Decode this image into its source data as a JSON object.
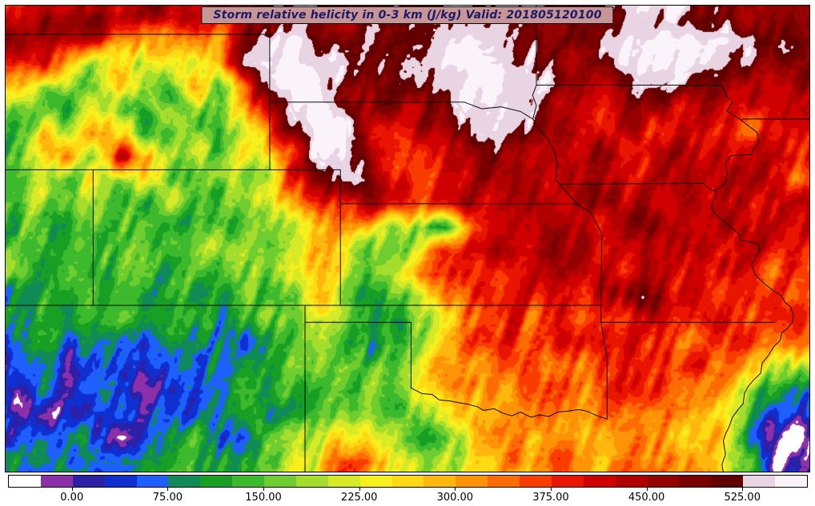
{
  "title": {
    "text": "Storm relative helicity in 0-3 km (J/kg) Valid: 201805120100",
    "bg_color": "#c79595",
    "text_color": "#1a1a66",
    "border_color": "#000000"
  },
  "chart_data": {
    "type": "heatmap",
    "title": "Storm relative helicity in 0-3 km (J/kg) Valid: 201805120100",
    "units": "J/kg",
    "valid_time": "201805120100",
    "colorbar": {
      "min": -50,
      "max": 575,
      "bin_size": 25,
      "tick_values": [
        0,
        75,
        150,
        225,
        300,
        375,
        450,
        525
      ],
      "tick_labels": [
        "0.00",
        "75.00",
        "150.00",
        "225.00",
        "300.00",
        "375.00",
        "450.00",
        "525.00"
      ],
      "colors": [
        "#ffffff",
        "#8c2fa8",
        "#2c1fa8",
        "#0f2fd0",
        "#1e5fff",
        "#108a57",
        "#17a024",
        "#3cb92c",
        "#6fcd2f",
        "#a5dd2d",
        "#d6ea28",
        "#f7ef1e",
        "#ffd914",
        "#ffb60d",
        "#ff9307",
        "#ff6b03",
        "#fb3c00",
        "#ea1500",
        "#d00000",
        "#b20000",
        "#950000",
        "#7a0000",
        "#620000",
        "#e9d4e4",
        "#faf4fa"
      ]
    },
    "map": {
      "extent": {
        "lon_w": [
          111.5,
          88.7
        ],
        "lat": [
          45.87,
          32.07
        ]
      },
      "borders": [
        [
          [
            111.5,
            45
          ],
          [
            104,
            45
          ]
        ],
        [
          [
            104,
            45.87
          ],
          [
            104,
            41
          ]
        ],
        [
          [
            111.5,
            41
          ],
          [
            102,
            41
          ]
        ],
        [
          [
            109,
            41
          ],
          [
            109,
            37
          ]
        ],
        [
          [
            111.5,
            37
          ],
          [
            94.62,
            37
          ]
        ],
        [
          [
            102,
            41
          ],
          [
            102,
            37
          ]
        ],
        [
          [
            102,
            40
          ],
          [
            95.31,
            40
          ]
        ],
        [
          [
            104,
            43
          ],
          [
            98.5,
            43
          ],
          [
            98.0,
            42.8
          ],
          [
            97.45,
            42.86
          ],
          [
            96.9,
            42.72
          ],
          [
            96.55,
            42.5
          ],
          [
            96.38,
            42.2
          ],
          [
            96.12,
            41.9
          ],
          [
            95.92,
            41.5
          ],
          [
            95.86,
            41.1
          ],
          [
            95.9,
            40.7
          ],
          [
            95.6,
            40.35
          ],
          [
            95.31,
            40.0
          ],
          [
            95.1,
            39.86
          ],
          [
            94.9,
            39.72
          ],
          [
            94.6,
            39.1
          ],
          [
            94.62,
            37
          ]
        ],
        [
          [
            94.62,
            37
          ],
          [
            94.62,
            36.5
          ]
        ],
        [
          [
            94.62,
            36.5
          ],
          [
            89.73,
            36.5
          ]
        ],
        [
          [
            94.62,
            36.5
          ],
          [
            94.45,
            35.4
          ],
          [
            94.45,
            33.64
          ]
        ],
        [
          [
            96.45,
            45.87
          ],
          [
            96.45,
            43.5
          ],
          [
            96.56,
            43.2
          ],
          [
            96.45,
            42.9
          ],
          [
            96.55,
            42.5
          ]
        ],
        [
          [
            96.45,
            43.5
          ],
          [
            91.2,
            43.5
          ]
        ],
        [
          [
            95.77,
            40.58
          ],
          [
            91.73,
            40.6
          ],
          [
            91.5,
            40.4
          ],
          [
            91.4,
            40.38
          ]
        ],
        [
          [
            91.2,
            43.5
          ],
          [
            91.05,
            43.15
          ],
          [
            90.9,
            43.0
          ],
          [
            91.06,
            42.74
          ],
          [
            90.7,
            42.5
          ],
          [
            90.45,
            42.3
          ],
          [
            90.2,
            42.1
          ],
          [
            90.16,
            41.8
          ],
          [
            90.32,
            41.6
          ],
          [
            90.36,
            41.45
          ],
          [
            90.95,
            41.42
          ],
          [
            91.1,
            41.2
          ],
          [
            91.05,
            40.9
          ],
          [
            91.1,
            40.6
          ],
          [
            91.4,
            40.38
          ],
          [
            91.36,
            40.2
          ],
          [
            91.5,
            40.0
          ],
          [
            91.43,
            39.75
          ],
          [
            90.72,
            39.1
          ],
          [
            90.66,
            38.93
          ],
          [
            90.2,
            38.82
          ],
          [
            90.12,
            38.65
          ],
          [
            90.26,
            38.4
          ],
          [
            90.36,
            38.2
          ],
          [
            90.26,
            37.9
          ],
          [
            89.95,
            37.6
          ],
          [
            89.7,
            37.4
          ],
          [
            89.52,
            37.3
          ],
          [
            89.42,
            37.1
          ],
          [
            89.26,
            36.96
          ],
          [
            89.17,
            36.7
          ],
          [
            89.2,
            36.5
          ],
          [
            89.36,
            36.3
          ],
          [
            89.5,
            36.2
          ],
          [
            89.56,
            35.95
          ],
          [
            89.72,
            35.8
          ],
          [
            89.9,
            35.5
          ],
          [
            90.06,
            35.3
          ],
          [
            90.1,
            35.0
          ],
          [
            90.3,
            34.8
          ],
          [
            90.46,
            34.6
          ],
          [
            90.56,
            34.4
          ],
          [
            90.6,
            34.1
          ],
          [
            90.76,
            33.9
          ],
          [
            90.9,
            33.7
          ],
          [
            91.0,
            33.4
          ],
          [
            91.1,
            33.2
          ],
          [
            91.16,
            33.0
          ],
          [
            91.1,
            32.6
          ],
          [
            91.2,
            32.3
          ],
          [
            91.16,
            32.07
          ]
        ],
        [
          [
            100,
            36.5
          ],
          [
            100,
            34.56
          ]
        ],
        [
          [
            103,
            36.5
          ],
          [
            100,
            36.5
          ]
        ],
        [
          [
            103,
            37
          ],
          [
            103,
            32.07
          ]
        ],
        [
          [
            100,
            34.56
          ],
          [
            99.7,
            34.4
          ],
          [
            99.4,
            34.37
          ],
          [
            99.2,
            34.21
          ],
          [
            98.9,
            34.18
          ],
          [
            98.6,
            34.12
          ],
          [
            98.38,
            34.08
          ],
          [
            98.1,
            34.0
          ],
          [
            97.95,
            33.9
          ],
          [
            97.65,
            33.95
          ],
          [
            97.4,
            33.82
          ],
          [
            97.15,
            33.74
          ],
          [
            96.9,
            33.85
          ],
          [
            96.6,
            33.7
          ],
          [
            96.35,
            33.77
          ],
          [
            96.1,
            33.72
          ],
          [
            95.85,
            33.85
          ],
          [
            95.55,
            33.88
          ],
          [
            95.25,
            33.93
          ],
          [
            95.0,
            33.87
          ],
          [
            94.75,
            33.75
          ],
          [
            94.45,
            33.64
          ]
        ],
        [
          [
            90.64,
            42.5
          ],
          [
            88.7,
            42.5
          ]
        ]
      ]
    },
    "grid": {
      "cols": 32,
      "rows": 20,
      "values": [
        [
          430,
          460,
          440,
          470,
          450,
          430,
          460,
          440,
          420,
          450,
          470,
          490,
          500,
          480,
          500,
          520,
          510,
          530,
          520,
          540,
          520,
          500,
          490,
          510,
          530,
          540,
          520,
          500,
          480,
          470,
          490,
          510
        ],
        [
          420,
          440,
          410,
          380,
          350,
          300,
          330,
          280,
          320,
          500,
          555,
          560,
          530,
          490,
          500,
          510,
          520,
          545,
          555,
          550,
          520,
          500,
          510,
          530,
          550,
          560,
          558,
          555,
          552,
          545,
          500,
          480
        ],
        [
          380,
          400,
          300,
          200,
          280,
          180,
          250,
          160,
          300,
          555,
          560,
          565,
          540,
          520,
          480,
          500,
          530,
          550,
          560,
          555,
          530,
          490,
          470,
          500,
          555,
          560,
          555,
          550,
          545,
          500,
          470,
          460
        ],
        [
          300,
          180,
          220,
          160,
          300,
          200,
          150,
          280,
          180,
          350,
          540,
          560,
          555,
          480,
          450,
          470,
          500,
          540,
          555,
          560,
          550,
          520,
          480,
          460,
          480,
          540,
          520,
          480,
          460,
          440,
          430,
          450
        ],
        [
          150,
          220,
          130,
          260,
          170,
          140,
          230,
          150,
          200,
          280,
          450,
          540,
          560,
          530,
          420,
          440,
          470,
          510,
          545,
          555,
          545,
          500,
          460,
          430,
          420,
          440,
          430,
          420,
          410,
          400,
          420,
          430
        ],
        [
          140,
          300,
          180,
          350,
          250,
          160,
          130,
          180,
          140,
          200,
          350,
          500,
          555,
          545,
          430,
          400,
          430,
          470,
          520,
          545,
          520,
          480,
          440,
          420,
          400,
          410,
          400,
          390,
          380,
          390,
          400,
          410
        ],
        [
          160,
          240,
          320,
          200,
          400,
          300,
          180,
          150,
          170,
          220,
          280,
          420,
          540,
          555,
          470,
          380,
          400,
          430,
          470,
          500,
          480,
          460,
          440,
          470,
          430,
          410,
          430,
          400,
          420,
          400,
          410,
          420
        ],
        [
          140,
          180,
          150,
          280,
          180,
          220,
          150,
          130,
          160,
          180,
          240,
          350,
          480,
          540,
          520,
          420,
          380,
          400,
          430,
          460,
          440,
          420,
          450,
          430,
          410,
          430,
          450,
          420,
          440,
          410,
          430,
          340
        ],
        [
          130,
          160,
          140,
          200,
          160,
          130,
          170,
          140,
          150,
          170,
          200,
          280,
          380,
          380,
          420,
          400,
          350,
          380,
          420,
          440,
          430,
          450,
          430,
          450,
          420,
          440,
          420,
          440,
          410,
          420,
          400,
          410
        ],
        [
          120,
          150,
          130,
          170,
          140,
          160,
          130,
          150,
          140,
          160,
          180,
          220,
          300,
          300,
          260,
          200,
          150,
          80,
          350,
          420,
          440,
          430,
          450,
          440,
          430,
          450,
          440,
          430,
          420,
          430,
          410,
          420
        ],
        [
          130,
          160,
          140,
          180,
          150,
          170,
          140,
          160,
          150,
          180,
          200,
          250,
          320,
          220,
          180,
          160,
          220,
          350,
          400,
          430,
          420,
          440,
          430,
          420,
          440,
          430,
          420,
          430,
          410,
          400,
          390,
          400
        ],
        [
          140,
          120,
          150,
          130,
          160,
          140,
          120,
          150,
          130,
          160,
          180,
          220,
          280,
          200,
          160,
          190,
          300,
          350,
          380,
          400,
          420,
          400,
          420,
          430,
          410,
          430,
          420,
          400,
          390,
          380,
          370,
          380
        ],
        [
          100,
          130,
          110,
          140,
          120,
          100,
          130,
          110,
          140,
          120,
          150,
          180,
          320,
          160,
          130,
          120,
          200,
          300,
          350,
          380,
          400,
          390,
          410,
          400,
          420,
          520,
          430,
          410,
          390,
          370,
          360,
          370
        ],
        [
          90,
          120,
          100,
          130,
          110,
          90,
          120,
          100,
          110,
          130,
          140,
          160,
          200,
          150,
          100,
          80,
          150,
          250,
          320,
          360,
          380,
          370,
          390,
          380,
          400,
          420,
          400,
          380,
          370,
          360,
          350,
          360
        ],
        [
          60,
          90,
          40,
          110,
          80,
          60,
          100,
          80,
          120,
          100,
          130,
          150,
          180,
          120,
          60,
          100,
          180,
          280,
          330,
          350,
          370,
          360,
          380,
          370,
          390,
          380,
          370,
          360,
          350,
          340,
          330,
          340
        ],
        [
          30,
          60,
          20,
          80,
          50,
          30,
          70,
          90,
          110,
          90,
          120,
          140,
          160,
          180,
          150,
          170,
          220,
          300,
          340,
          330,
          350,
          340,
          360,
          350,
          370,
          360,
          350,
          340,
          330,
          320,
          200,
          150
        ],
        [
          -20,
          40,
          10,
          60,
          30,
          -10,
          50,
          70,
          90,
          110,
          100,
          130,
          150,
          120,
          140,
          160,
          200,
          260,
          300,
          320,
          340,
          330,
          350,
          340,
          360,
          350,
          340,
          330,
          300,
          150,
          80,
          60
        ],
        [
          20,
          -20,
          40,
          10,
          60,
          30,
          80,
          60,
          100,
          80,
          110,
          130,
          160,
          200,
          180,
          150,
          180,
          220,
          260,
          300,
          320,
          310,
          330,
          320,
          340,
          330,
          320,
          310,
          280,
          100,
          40,
          30
        ],
        [
          50,
          30,
          70,
          40,
          20,
          60,
          90,
          110,
          70,
          100,
          130,
          160,
          200,
          250,
          220,
          180,
          150,
          190,
          240,
          280,
          300,
          290,
          310,
          300,
          320,
          310,
          300,
          290,
          260,
          120,
          20,
          -10
        ],
        [
          80,
          60,
          100,
          70,
          50,
          90,
          120,
          140,
          100,
          130,
          160,
          200,
          260,
          380,
          300,
          220,
          180,
          210,
          250,
          290,
          310,
          300,
          320,
          310,
          330,
          320,
          310,
          300,
          270,
          140,
          30,
          10
        ]
      ]
    }
  }
}
